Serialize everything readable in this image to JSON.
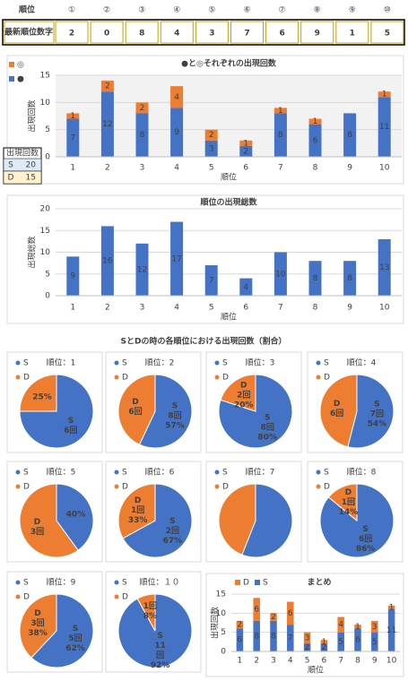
{
  "header_table": {
    "label": "順位",
    "columns": [
      "①",
      "②",
      "③",
      "④",
      "⑤",
      "⑥",
      "⑦",
      "⑧",
      "⑨",
      "⑩"
    ],
    "row_label": "最新順位数字",
    "row": [
      2,
      0,
      8,
      4,
      3,
      7,
      6,
      9,
      1,
      5
    ]
  },
  "count_table": {
    "title": "出現回数",
    "rows": [
      [
        "S",
        20
      ],
      [
        "D",
        15
      ]
    ]
  },
  "section_title": "SとDの時の各順位における出現回数（割合）",
  "chart_data": [
    {
      "type": "stacked-bar",
      "title": "●と◎それぞれの出現回数",
      "x_label": "順位",
      "y_label": "出現回数",
      "categories": [
        1,
        2,
        3,
        4,
        5,
        6,
        7,
        8,
        9,
        10
      ],
      "ylim": [
        0,
        15
      ],
      "yticks": [
        0,
        5,
        10,
        15
      ],
      "grid": true,
      "legend": "top-left",
      "series": [
        {
          "name": "●",
          "color": "#4472c4",
          "values": [
            7,
            12,
            8,
            9,
            3,
            2,
            8,
            6,
            8,
            11
          ]
        },
        {
          "name": "◎",
          "color": "#ed7d31",
          "values": [
            1,
            2,
            2,
            4,
            2,
            1,
            1,
            1,
            null,
            1
          ]
        }
      ]
    },
    {
      "type": "bar",
      "title": "順位の出現総数",
      "x_label": "順位",
      "y_label": "出現総数",
      "categories": [
        1,
        2,
        3,
        4,
        5,
        6,
        7,
        8,
        9,
        10
      ],
      "values": [
        9,
        16,
        12,
        17,
        7,
        4,
        10,
        8,
        8,
        13
      ],
      "color": "#4472c4",
      "ylim": [
        0,
        20
      ],
      "yticks": [
        0,
        5,
        10,
        15,
        20
      ],
      "grid": true
    },
    {
      "type": "pie",
      "title": "順位：1",
      "categories": [
        "S",
        "D"
      ],
      "colors": [
        "#4472c4",
        "#ed7d31"
      ],
      "values": [
        75,
        25
      ],
      "slice_labels": [
        [
          "S",
          "6回"
        ],
        [
          "25%"
        ]
      ]
    },
    {
      "type": "pie",
      "title": "順位：2",
      "categories": [
        "S",
        "D"
      ],
      "colors": [
        "#4472c4",
        "#ed7d31"
      ],
      "values": [
        57,
        43
      ],
      "slice_labels": [
        [
          "S",
          "8回",
          "57%"
        ],
        [
          "D",
          "6回"
        ]
      ]
    },
    {
      "type": "pie",
      "title": "順位：3",
      "categories": [
        "S",
        "D"
      ],
      "colors": [
        "#4472c4",
        "#ed7d31"
      ],
      "values": [
        80,
        20
      ],
      "slice_labels": [
        [
          "S",
          "8回",
          "80%"
        ],
        [
          "D",
          "2回",
          "20%"
        ]
      ]
    },
    {
      "type": "pie",
      "title": "順位：4",
      "categories": [
        "S",
        "D"
      ],
      "colors": [
        "#4472c4",
        "#ed7d31"
      ],
      "values": [
        54,
        46
      ],
      "slice_labels": [
        [
          "S",
          "7回",
          "54%"
        ],
        [
          "D",
          "6回"
        ]
      ]
    },
    {
      "type": "pie",
      "title": "順位：5",
      "categories": [
        "S",
        "D"
      ],
      "colors": [
        "#4472c4",
        "#ed7d31"
      ],
      "values": [
        40,
        60
      ],
      "slice_labels": [
        [
          "40%"
        ],
        [
          "D",
          "3回"
        ]
      ]
    },
    {
      "type": "pie",
      "title": "順位：6",
      "categories": [
        "S",
        "D"
      ],
      "colors": [
        "#4472c4",
        "#ed7d31"
      ],
      "values": [
        67,
        33
      ],
      "slice_labels": [
        [
          "S",
          "2回",
          "67%"
        ],
        [
          "D",
          "1回",
          "33%"
        ]
      ]
    },
    {
      "type": "pie",
      "title": "順位：7",
      "categories": [
        "S",
        "D"
      ],
      "colors": [
        "#4472c4",
        "#ed7d31"
      ],
      "values": [
        56,
        44
      ]
    },
    {
      "type": "pie",
      "title": "順位：8",
      "categories": [
        "S",
        "D"
      ],
      "colors": [
        "#4472c4",
        "#ed7d31"
      ],
      "values": [
        86,
        14
      ],
      "slice_labels": [
        [
          "S",
          "6回",
          "86%"
        ],
        [
          "D",
          "1回",
          "14%"
        ]
      ]
    },
    {
      "type": "pie",
      "title": "順位：9",
      "categories": [
        "S",
        "D"
      ],
      "colors": [
        "#4472c4",
        "#ed7d31"
      ],
      "values": [
        62,
        38
      ],
      "slice_labels": [
        [
          "S",
          "5回",
          "62%"
        ],
        [
          "D",
          "3回",
          "38%"
        ]
      ]
    },
    {
      "type": "pie",
      "title": "順位：１０",
      "categories": [
        "S",
        "D"
      ],
      "colors": [
        "#4472c4",
        "#ed7d31"
      ],
      "values": [
        92,
        8
      ],
      "slice_labels": [
        [
          "S",
          "11",
          "回",
          "92%"
        ],
        [
          "1回",
          "8%"
        ]
      ]
    },
    {
      "type": "stacked-bar",
      "title": "まとめ",
      "x_label": "順位",
      "y_label": "出現回数",
      "categories": [
        1,
        2,
        3,
        4,
        5,
        6,
        7,
        8,
        9,
        10
      ],
      "ylim": [
        0,
        15
      ],
      "yticks": [
        0,
        5,
        10,
        15
      ],
      "grid": true,
      "legend": "top-left",
      "series": [
        {
          "name": "S",
          "color": "#4472c4",
          "values": [
            6,
            8,
            8,
            7,
            2,
            2,
            5,
            6,
            5,
            11
          ]
        },
        {
          "name": "D",
          "color": "#ed7d31",
          "values": [
            2,
            6,
            2,
            6,
            3,
            1,
            4,
            1,
            3,
            1
          ]
        }
      ]
    }
  ]
}
